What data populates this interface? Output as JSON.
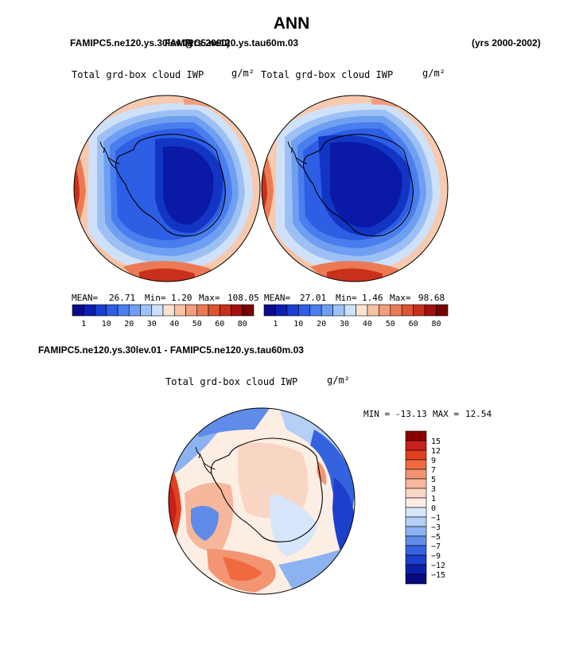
{
  "page_title": "ANN",
  "header": {
    "case1": "FAMIPC5.ne120.ys.30lev.01",
    "case2_overlap": "FAMIPC5.ne120.ys.tau60m.03",
    "years_overlap": "(yrs 2000)",
    "years": "(yrs 2000-2002)"
  },
  "panels": [
    {
      "var_label": "Total grd-box cloud IWP",
      "units": "g/m²",
      "stats": {
        "mean_label": "MEAN=",
        "mean": "26.71",
        "min_label": "Min=",
        "min": "1.20",
        "max_label": "Max=",
        "max": "108.05"
      }
    },
    {
      "var_label": "Total grd-box cloud IWP",
      "units": "g/m²",
      "stats": {
        "mean_label": "MEAN=",
        "mean": "27.01",
        "min_label": "Min=",
        "min": "1.46",
        "max_label": "Max=",
        "max": "98.68"
      }
    }
  ],
  "colorbar_top": {
    "colors": [
      "#0a0a8a",
      "#0a1fb4",
      "#1b3ecf",
      "#2e5ee6",
      "#4a7ef0",
      "#6e9ff3",
      "#9cc3f7",
      "#cde2fa",
      "#fbe3d3",
      "#f7c1a4",
      "#f29d7b",
      "#eb7a54",
      "#dc5430",
      "#c8301c",
      "#a31010",
      "#780000"
    ],
    "labels": [
      "1",
      "10",
      "20",
      "30",
      "40",
      "50",
      "60",
      "80"
    ]
  },
  "diff": {
    "title": "FAMIPC5.ne120.ys.30lev.01 - FAMIPC5.ne120.ys.tau60m.03",
    "var_label": "Total grd-box cloud IWP",
    "units": "g/m²",
    "min_label": "MIN =",
    "min": "-13.13",
    "max_label": "MAX =",
    "max": "12.54",
    "colorbar": {
      "colors": [
        "#8a0000",
        "#c8201a",
        "#e2401f",
        "#ef6a3f",
        "#f39472",
        "#f6b79c",
        "#f9d6c4",
        "#fdeee4",
        "#d7e6fa",
        "#b5cff6",
        "#8db2f1",
        "#5f8be9",
        "#3563e0",
        "#1c3fcc",
        "#0d1fa8",
        "#080a80"
      ],
      "labels": [
        "15",
        "12",
        "9",
        "7",
        "5",
        "3",
        "1",
        "0",
        "−1",
        "−3",
        "−5",
        "−7",
        "−9",
        "−12",
        "−15"
      ]
    }
  }
}
